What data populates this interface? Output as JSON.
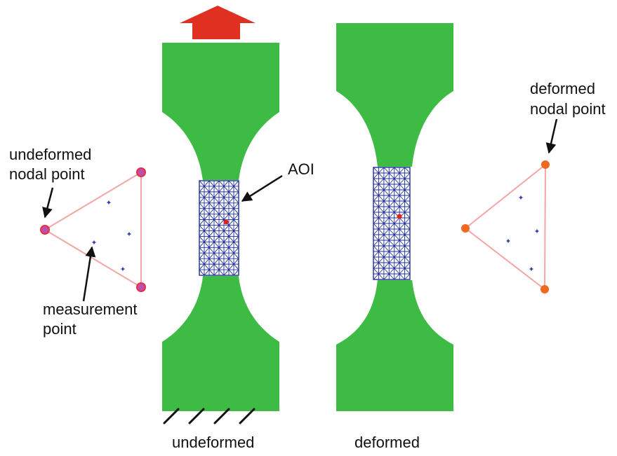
{
  "labels": {
    "undeformed_nodal_point_line1": "undeformed",
    "undeformed_nodal_point_line2": "nodal point",
    "measurement_point_line1": "measurement",
    "measurement_point_line2": "point",
    "aoi": "AOI",
    "deformed_nodal_point_line1": "deformed",
    "deformed_nodal_point_line2": "nodal point",
    "caption_undeformed": "undeformed",
    "caption_deformed": "deformed"
  },
  "colors": {
    "specimen": "#3dbb44",
    "mesh": "#1f2f9c",
    "mesh_fill": "#ffffff",
    "load_arrow": "#e03022",
    "undeformed_node_fill": "#c04db0",
    "undeformed_node_stroke": "#e2333c",
    "deformed_node": "#ef6a1e",
    "triangle_edge": "#f3a6a6",
    "measurement_point": "#2a3aa6",
    "center_point": "#e0221b",
    "annotation": "#111111"
  },
  "icons": {
    "load": "up-arrow-icon",
    "fixed_support": "hatched-support-icon"
  }
}
